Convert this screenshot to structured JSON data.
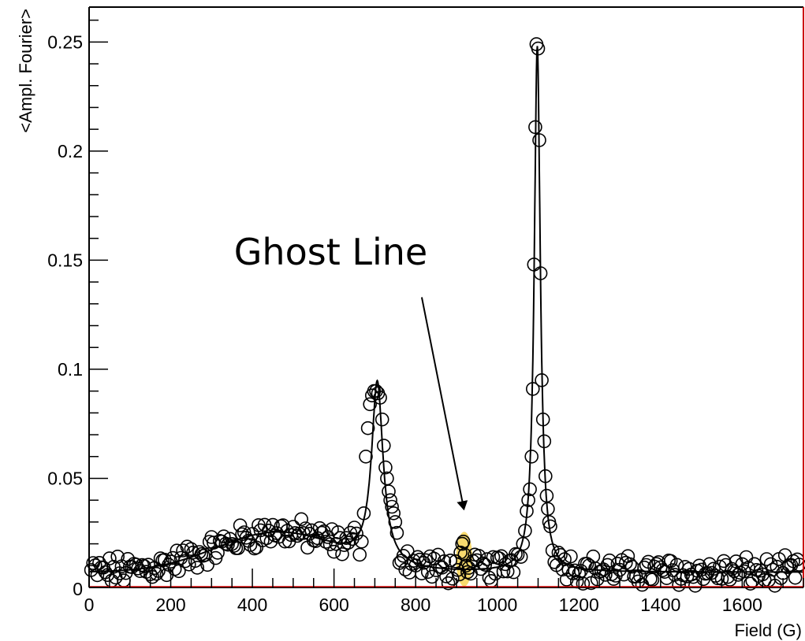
{
  "chart_data": {
    "type": "scatter",
    "xlabel": "Field (G)",
    "ylabel": "<Ampl. Fourier>",
    "xlim": [
      0,
      1750
    ],
    "ylim": [
      0,
      0.266
    ],
    "xticks": [
      {
        "v": 0,
        "label": "0"
      },
      {
        "v": 200,
        "label": "200"
      },
      {
        "v": 400,
        "label": "400"
      },
      {
        "v": 600,
        "label": "600"
      },
      {
        "v": 800,
        "label": "800"
      },
      {
        "v": 1000,
        "label": "1000"
      },
      {
        "v": 1200,
        "label": "1200"
      },
      {
        "v": 1400,
        "label": "1400"
      },
      {
        "v": 1600,
        "label": "1600"
      }
    ],
    "yticks": [
      {
        "v": 0,
        "label": "0"
      },
      {
        "v": 0.05,
        "label": "0.05"
      },
      {
        "v": 0.1,
        "label": "0.1"
      },
      {
        "v": 0.15,
        "label": "0.15"
      },
      {
        "v": 0.2,
        "label": "0.2"
      },
      {
        "v": 0.25,
        "label": "0.25"
      }
    ],
    "model": {
      "baseline": 0.007,
      "background_bump": {
        "center": 460,
        "sigma": 150,
        "amplitude": 0.018
      },
      "peaks": [
        {
          "center": 706,
          "gamma": 17,
          "amplitude": 0.083
        },
        {
          "center": 1098,
          "gamma": 9,
          "amplitude": 0.241
        }
      ]
    },
    "peak_points": [
      [
        663,
        0.015
      ],
      [
        668,
        0.021
      ],
      [
        673,
        0.034
      ],
      [
        678,
        0.06
      ],
      [
        683,
        0.073
      ],
      [
        688,
        0.084
      ],
      [
        693,
        0.088
      ],
      [
        698,
        0.09
      ],
      [
        703,
        0.09
      ],
      [
        708,
        0.089
      ],
      [
        713,
        0.087
      ],
      [
        718,
        0.077
      ],
      [
        722,
        0.065
      ],
      [
        726,
        0.055
      ],
      [
        730,
        0.05
      ],
      [
        734,
        0.044
      ],
      [
        738,
        0.04
      ],
      [
        742,
        0.037
      ],
      [
        746,
        0.034
      ],
      [
        750,
        0.03
      ],
      [
        754,
        0.025
      ],
      [
        1058,
        0.014
      ],
      [
        1063,
        0.02
      ],
      [
        1068,
        0.026
      ],
      [
        1072,
        0.035
      ],
      [
        1076,
        0.04
      ],
      [
        1080,
        0.045
      ],
      [
        1084,
        0.06
      ],
      [
        1087,
        0.091
      ],
      [
        1090,
        0.148
      ],
      [
        1093,
        0.211
      ],
      [
        1096,
        0.249
      ],
      [
        1100,
        0.247
      ],
      [
        1103,
        0.205
      ],
      [
        1106,
        0.144
      ],
      [
        1109,
        0.095
      ],
      [
        1112,
        0.077
      ],
      [
        1115,
        0.067
      ],
      [
        1118,
        0.051
      ],
      [
        1121,
        0.042
      ],
      [
        1124,
        0.036
      ],
      [
        1127,
        0.03
      ],
      [
        1130,
        0.028
      ]
    ],
    "ghost_points": [
      [
        898,
        0.012
      ],
      [
        903,
        0.008
      ],
      [
        907,
        0.006
      ],
      [
        910,
        0.016
      ],
      [
        914,
        0.02
      ],
      [
        917,
        0.021
      ],
      [
        920,
        0.015
      ],
      [
        923,
        0.01
      ],
      [
        927,
        0.007
      ],
      [
        930,
        0.009
      ]
    ],
    "highlight": {
      "x": 919,
      "y": 0.013,
      "rx": 36,
      "ry": 0.0125,
      "color": "#f5cd3d"
    },
    "annotation": {
      "text": "Ghost Line",
      "text_x": 355,
      "text_y": 0.148,
      "arrow_from": [
        815,
        0.133
      ],
      "arrow_to": [
        918,
        0.036
      ]
    },
    "series_color": "#000000",
    "frame_color": "#000000",
    "right_edge_color": "#cc0000",
    "grid": false
  }
}
